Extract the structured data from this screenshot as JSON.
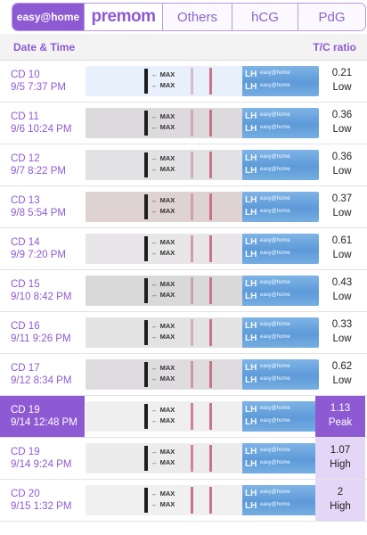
{
  "tabs": {
    "brand": "easy@home",
    "premom": "premom",
    "others": "Others",
    "hcg": "hCG",
    "pdg": "PdG"
  },
  "header": {
    "date_label": "Date & Time",
    "ratio_label": "T/C ratio"
  },
  "strip_text": {
    "max": "← MAX",
    "lh": "LH",
    "brand": "easy@home"
  },
  "colors": {
    "accent": "#8e5ad3",
    "accent_light": "#e4d6f7",
    "test_line": "#c9738a"
  },
  "rows": [
    {
      "cd": "CD 10",
      "datetime": "9/5 7:37 PM",
      "ratio": "0.21",
      "level": "Low",
      "paper": "#e8f0fb",
      "t": 0.25
    },
    {
      "cd": "CD 11",
      "datetime": "9/6 10:24 PM",
      "ratio": "0.36",
      "level": "Low",
      "paper": "#dcdadc",
      "t": 0.35
    },
    {
      "cd": "CD 12",
      "datetime": "9/7 8:22 PM",
      "ratio": "0.36",
      "level": "Low",
      "paper": "#e2e2e4",
      "t": 0.35
    },
    {
      "cd": "CD 13",
      "datetime": "9/8 5:54 PM",
      "ratio": "0.37",
      "level": "Low",
      "paper": "#dfd2d2",
      "t": 0.38
    },
    {
      "cd": "CD 14",
      "datetime": "9/9 7:20 PM",
      "ratio": "0.61",
      "level": "Low",
      "paper": "#e8e6e8",
      "t": 0.55
    },
    {
      "cd": "CD 15",
      "datetime": "9/10 8:42 PM",
      "ratio": "0.43",
      "level": "Low",
      "paper": "#d9d9d9",
      "t": 0.42
    },
    {
      "cd": "CD 16",
      "datetime": "9/11 9:26 PM",
      "ratio": "0.33",
      "level": "Low",
      "paper": "#e3e3e3",
      "t": 0.32
    },
    {
      "cd": "CD 17",
      "datetime": "9/12 8:34 PM",
      "ratio": "0.62",
      "level": "Low",
      "paper": "#dedcde",
      "t": 0.56
    },
    {
      "cd": "CD 19",
      "datetime": "9/14 12:48 PM",
      "ratio": "1.13",
      "level": "Peak",
      "paper": "#efefef",
      "t": 0.85,
      "state": "selected"
    },
    {
      "cd": "CD 19",
      "datetime": "9/14 9:24 PM",
      "ratio": "1.07",
      "level": "High",
      "paper": "#ececec",
      "t": 0.8,
      "state": "high"
    },
    {
      "cd": "CD 20",
      "datetime": "9/15 1:32 PM",
      "ratio": "2",
      "level": "High",
      "paper": "#f0f0f0",
      "t": 1.0,
      "state": "high"
    }
  ]
}
